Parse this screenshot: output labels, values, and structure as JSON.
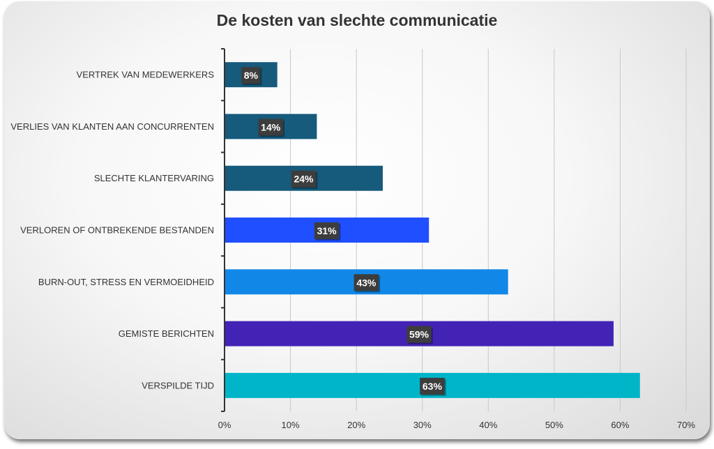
{
  "chart_data": {
    "type": "bar",
    "orientation": "horizontal",
    "title": "De kosten van slechte communicatie",
    "categories": [
      "VERTREK VAN MEDEWERKERS",
      "VERLIES VAN KLANTEN AAN CONCURRENTEN",
      "SLECHTE KLANTERVARING",
      "VERLOREN OF ONTBREKENDE BESTANDEN",
      "BURN-OUT, STRESS EN VERMOEIDHEID",
      "GEMISTE BERICHTEN",
      "VERSPILDE TIJD"
    ],
    "values": [
      8,
      14,
      24,
      31,
      43,
      59,
      63
    ],
    "data_labels": [
      "8%",
      "14%",
      "24%",
      "31%",
      "43%",
      "59%",
      "63%"
    ],
    "colors": [
      "#165a7c",
      "#165a7c",
      "#165a7c",
      "#1f4fff",
      "#1188e8",
      "#4323b6",
      "#00b5c8"
    ],
    "xlim": [
      0,
      70
    ],
    "xticks": [
      0,
      10,
      20,
      30,
      40,
      50,
      60,
      70
    ],
    "xtick_labels": [
      "0%",
      "10%",
      "20%",
      "30%",
      "40%",
      "50%",
      "60%",
      "70%"
    ],
    "grid": "vertical",
    "legend": "none"
  }
}
